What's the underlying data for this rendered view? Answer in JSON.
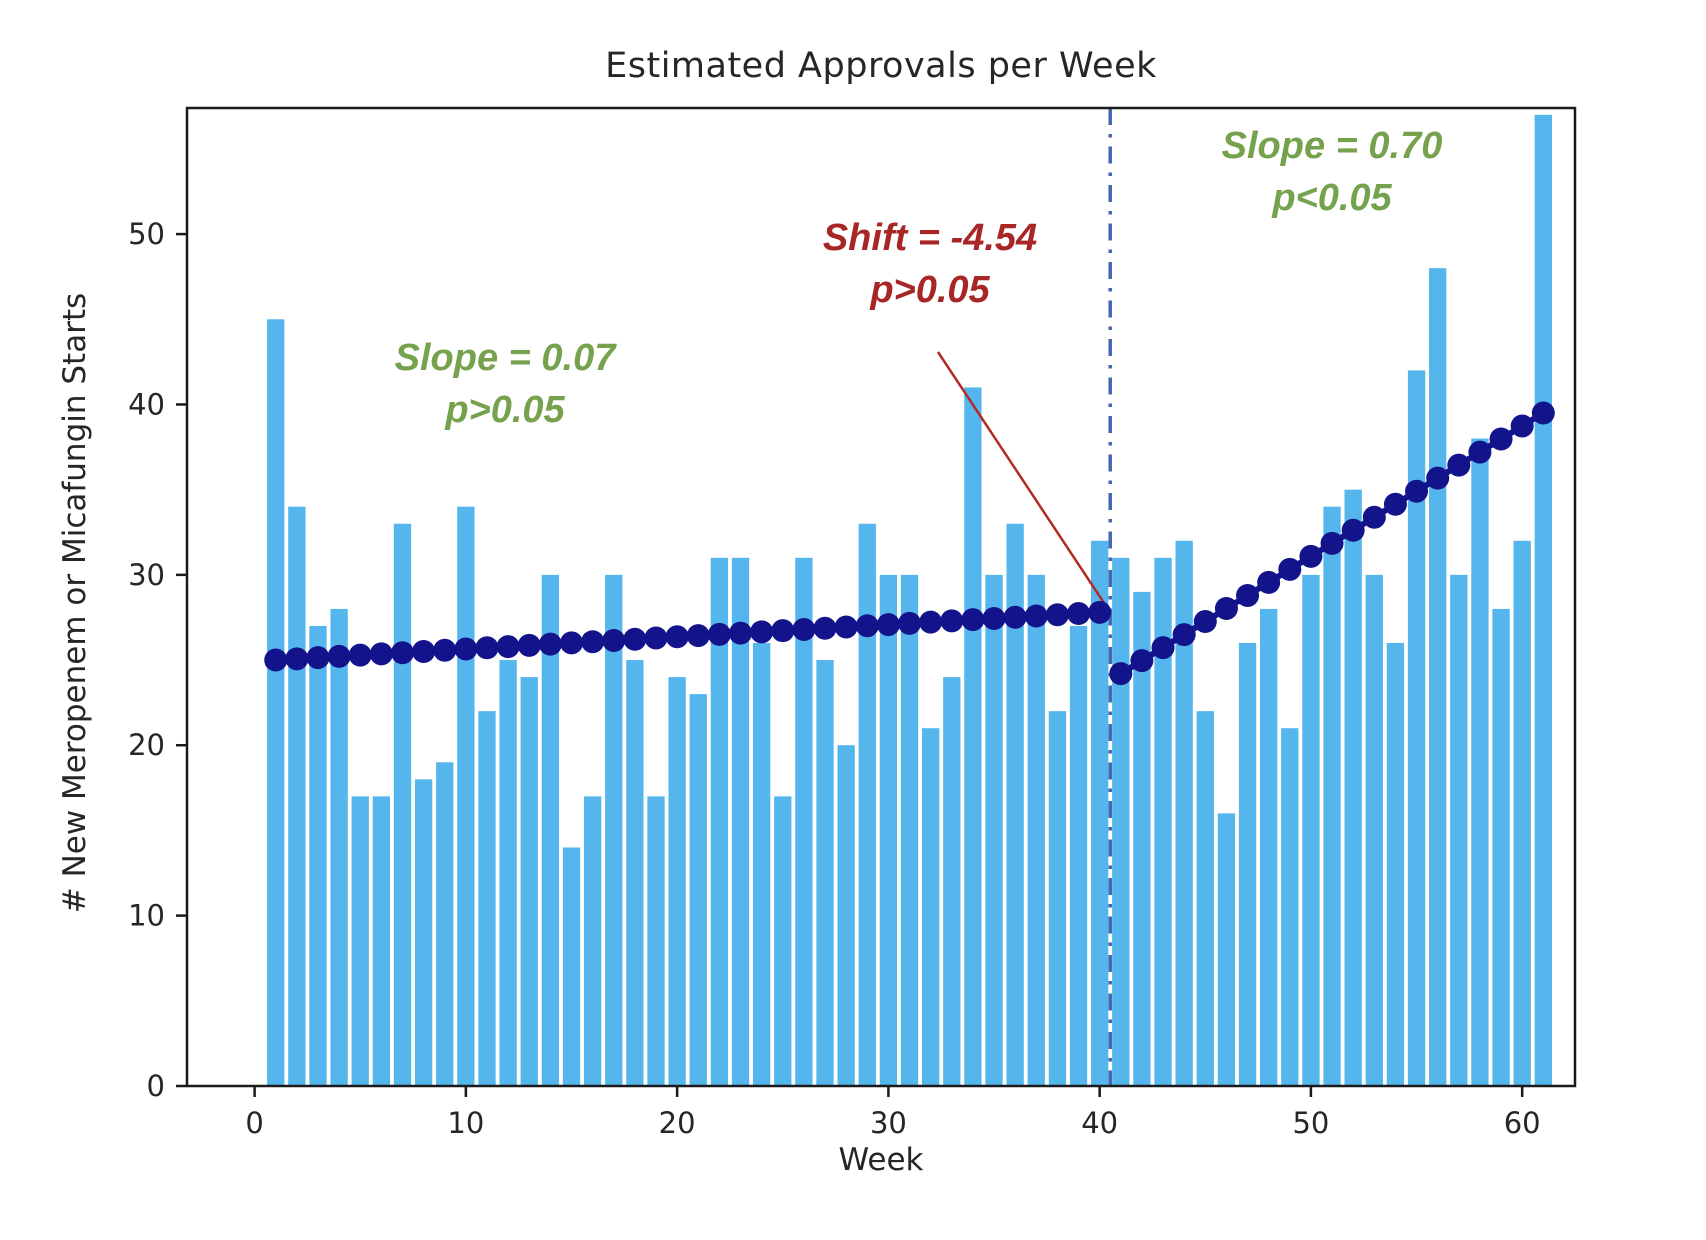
{
  "chart_data": {
    "type": "bar",
    "title": "Estimated Approvals per Week",
    "xlabel": "Week",
    "ylabel": "# New Meropenem or Micafungin Starts",
    "weeks": [
      1,
      2,
      3,
      4,
      5,
      6,
      7,
      8,
      9,
      10,
      11,
      12,
      13,
      14,
      15,
      16,
      17,
      18,
      19,
      20,
      21,
      22,
      23,
      24,
      25,
      26,
      27,
      28,
      29,
      30,
      31,
      32,
      33,
      34,
      35,
      36,
      37,
      38,
      39,
      40,
      41,
      42,
      43,
      44,
      45,
      46,
      47,
      48,
      49,
      50,
      51,
      52,
      53,
      54,
      55,
      56,
      57,
      58,
      59,
      60,
      61
    ],
    "bar_values": [
      45,
      34,
      27,
      28,
      17,
      17,
      33,
      18,
      19,
      34,
      22,
      25,
      24,
      30,
      14,
      17,
      30,
      25,
      17,
      24,
      23,
      31,
      31,
      26,
      17,
      31,
      25,
      20,
      33,
      30,
      30,
      21,
      24,
      41,
      30,
      33,
      30,
      22,
      27,
      32,
      31,
      29,
      31,
      32,
      22,
      16,
      26,
      28,
      21,
      30,
      34,
      35,
      30,
      26,
      42,
      48,
      30,
      38,
      28,
      32,
      57
    ],
    "bar_color": "#55B6EE",
    "trend_color": "#13138B",
    "trend_segments": [
      {
        "name": "pre-intervention",
        "week_start": 1,
        "week_end": 40,
        "value_start": 25.0,
        "value_end": 27.8,
        "slope": 0.07,
        "slope_label": "Slope = 0.07",
        "p_label": "p>0.05"
      },
      {
        "name": "post-intervention",
        "week_start": 41,
        "week_end": 61,
        "value_start": 24.2,
        "value_end": 39.5,
        "slope": 0.7,
        "slope_label": "Slope = 0.70",
        "p_label": "p<0.05"
      }
    ],
    "intervention": {
      "week": 40.5,
      "line_style": "dashdot",
      "line_color": "#4467B0",
      "shift": -4.54,
      "shift_label": "Shift = -4.54",
      "p_label": "p>0.05",
      "pointer_color": "#B22A22"
    },
    "annotations": [
      {
        "id": "slope-pre",
        "line1": "Slope = 0.07",
        "line2": "p>0.05",
        "color": "#76A24E",
        "bold_line2": false
      },
      {
        "id": "shift",
        "line1": "Shift = -4.54",
        "line2": "p>0.05",
        "color": "#A82626",
        "bold_line2": false
      },
      {
        "id": "slope-post",
        "line1": "Slope = 0.70",
        "line2": "p<0.05",
        "color": "#76A24E",
        "bold_line2": true
      }
    ],
    "x_ticks": [
      0,
      10,
      20,
      30,
      40,
      50,
      60
    ],
    "y_ticks": [
      0,
      10,
      20,
      30,
      40,
      50
    ],
    "xlim": [
      -3.2,
      62.5
    ],
    "ylim": [
      0,
      57.4
    ],
    "grid": false,
    "legend": "none"
  }
}
